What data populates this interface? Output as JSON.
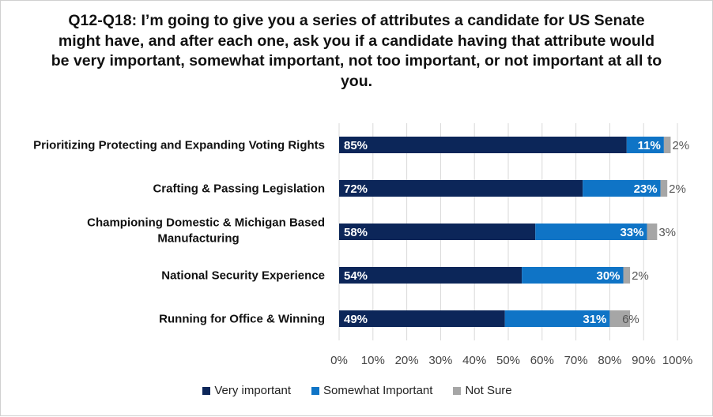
{
  "title": "Q12-Q18: I’m going to give you a series of attributes a candidate for US Senate might have, and after each one, ask you if a candidate having that attribute would be very important, somewhat important, not too important, or not important at all to you.",
  "colors": {
    "very": "#0c2659",
    "somewhat": "#0f74c6",
    "not_sure": "#a6a6a6",
    "grid": "#d9d9d9"
  },
  "chart_data": {
    "type": "bar",
    "orientation": "horizontal",
    "stacked": true,
    "title": "Q12-Q18: I’m going to give you a series of attributes a candidate for US Senate might have, and after each one, ask you if a candidate having that attribute would be very important, somewhat important, not too important, or not important at all to you.",
    "categories": [
      [
        "Prioritizing Protecting and Expanding Voting Rights"
      ],
      [
        "Crafting & Passing Legislation"
      ],
      [
        "Championing Domestic & Michigan Based",
        "Manufacturing"
      ],
      [
        "National Security Experience"
      ],
      [
        "Running for Office & Winning"
      ]
    ],
    "series": [
      {
        "name": "Very important",
        "color": "#0c2659",
        "values": [
          85,
          72,
          58,
          54,
          49
        ]
      },
      {
        "name": "Somewhat Important",
        "color": "#0f74c6",
        "values": [
          11,
          23,
          33,
          30,
          31
        ]
      },
      {
        "name": "Not Sure",
        "color": "#a6a6a6",
        "values": [
          2,
          2,
          3,
          2,
          6
        ]
      }
    ],
    "xlim": [
      0,
      100
    ],
    "x_ticks": [
      "0%",
      "10%",
      "20%",
      "30%",
      "40%",
      "50%",
      "60%",
      "70%",
      "80%",
      "90%",
      "100%"
    ],
    "grid": true,
    "legend_position": "bottom"
  }
}
